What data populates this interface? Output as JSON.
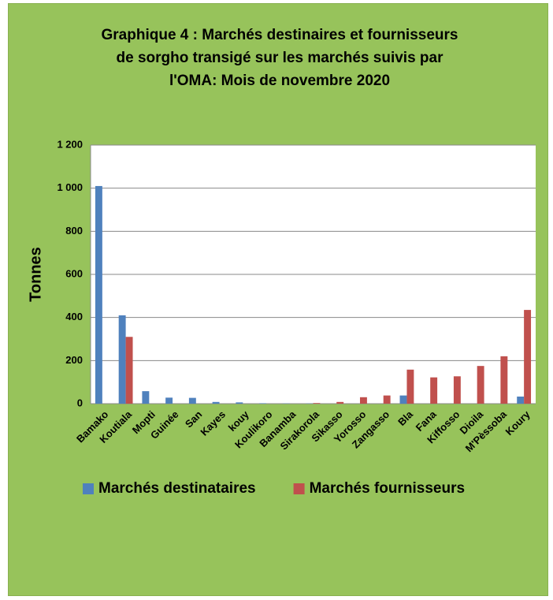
{
  "chart_data": {
    "type": "bar",
    "title": "Graphique 4 : Marchés destinaires et fournisseurs de sorgho transigé sur les marchés suivis par l'OMA: Mois de novembre 2020",
    "y_label": "Tonnes",
    "categories": [
      "Bamako",
      "Koutiala",
      "Mopti",
      "Guinée",
      "San",
      "Kayes",
      "kouy",
      "Koulikoro",
      "Banamba",
      "Sirakorola",
      "Sikasso",
      "Yorosso",
      "Zangasso",
      "Bla",
      "Fana",
      "Kiffosso",
      "Dioila",
      "M'Pèssoba",
      "Koury"
    ],
    "series": [
      {
        "name": "Marchés destinataires",
        "color": "#4f81bd",
        "values": [
          1010,
          410,
          58,
          28,
          27,
          8,
          6,
          2,
          1,
          1,
          0,
          0,
          0,
          38,
          0,
          0,
          0,
          0,
          33
        ]
      },
      {
        "name": "Marchés fournisseurs",
        "color": "#c0504d",
        "values": [
          0,
          310,
          0,
          0,
          0,
          0,
          0,
          0,
          0,
          3,
          8,
          30,
          38,
          158,
          122,
          127,
          175,
          220,
          435
        ]
      }
    ],
    "ylim": [
      0,
      1200
    ],
    "yticks": [
      0,
      200,
      400,
      600,
      800,
      {
        "value": 1000,
        "label": "1 000"
      },
      {
        "value": 1200,
        "label": "1 200"
      }
    ],
    "grid": true,
    "legend": "bottom"
  }
}
